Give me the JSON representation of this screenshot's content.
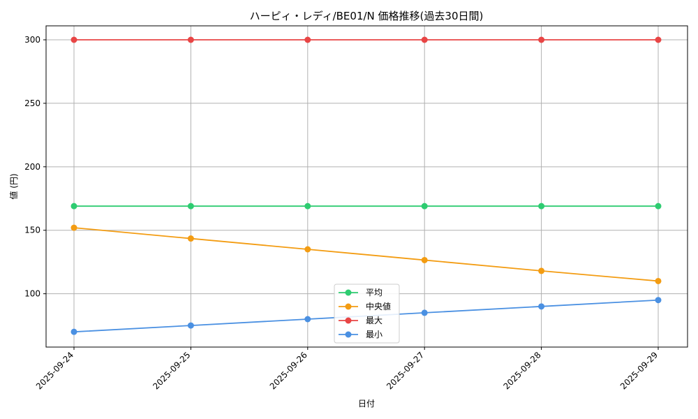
{
  "chart_data": {
    "type": "line",
    "title": "ハーピィ・レディ/BE01/N 価格推移(過去30日間)",
    "xlabel": "日付",
    "ylabel": "値 (円)",
    "categories": [
      "2025-09-24",
      "2025-09-25",
      "2025-09-26",
      "2025-09-27",
      "2025-09-28",
      "2025-09-29"
    ],
    "ylim": [
      58,
      311
    ],
    "yticks": [
      100,
      150,
      200,
      250,
      300
    ],
    "grid": true,
    "legend_position": "lower center",
    "series": [
      {
        "name": "平均",
        "color": "#2ecc71",
        "values": [
          169,
          169,
          169,
          169,
          169,
          169
        ]
      },
      {
        "name": "中央値",
        "color": "#f39c12",
        "values": [
          152,
          143.5,
          135,
          126.5,
          118,
          110
        ]
      },
      {
        "name": "最大",
        "color": "#e84545",
        "values": [
          300,
          300,
          300,
          300,
          300,
          300
        ]
      },
      {
        "name": "最小",
        "color": "#4a90e2",
        "values": [
          70,
          75,
          80,
          85,
          90,
          95
        ]
      }
    ]
  }
}
